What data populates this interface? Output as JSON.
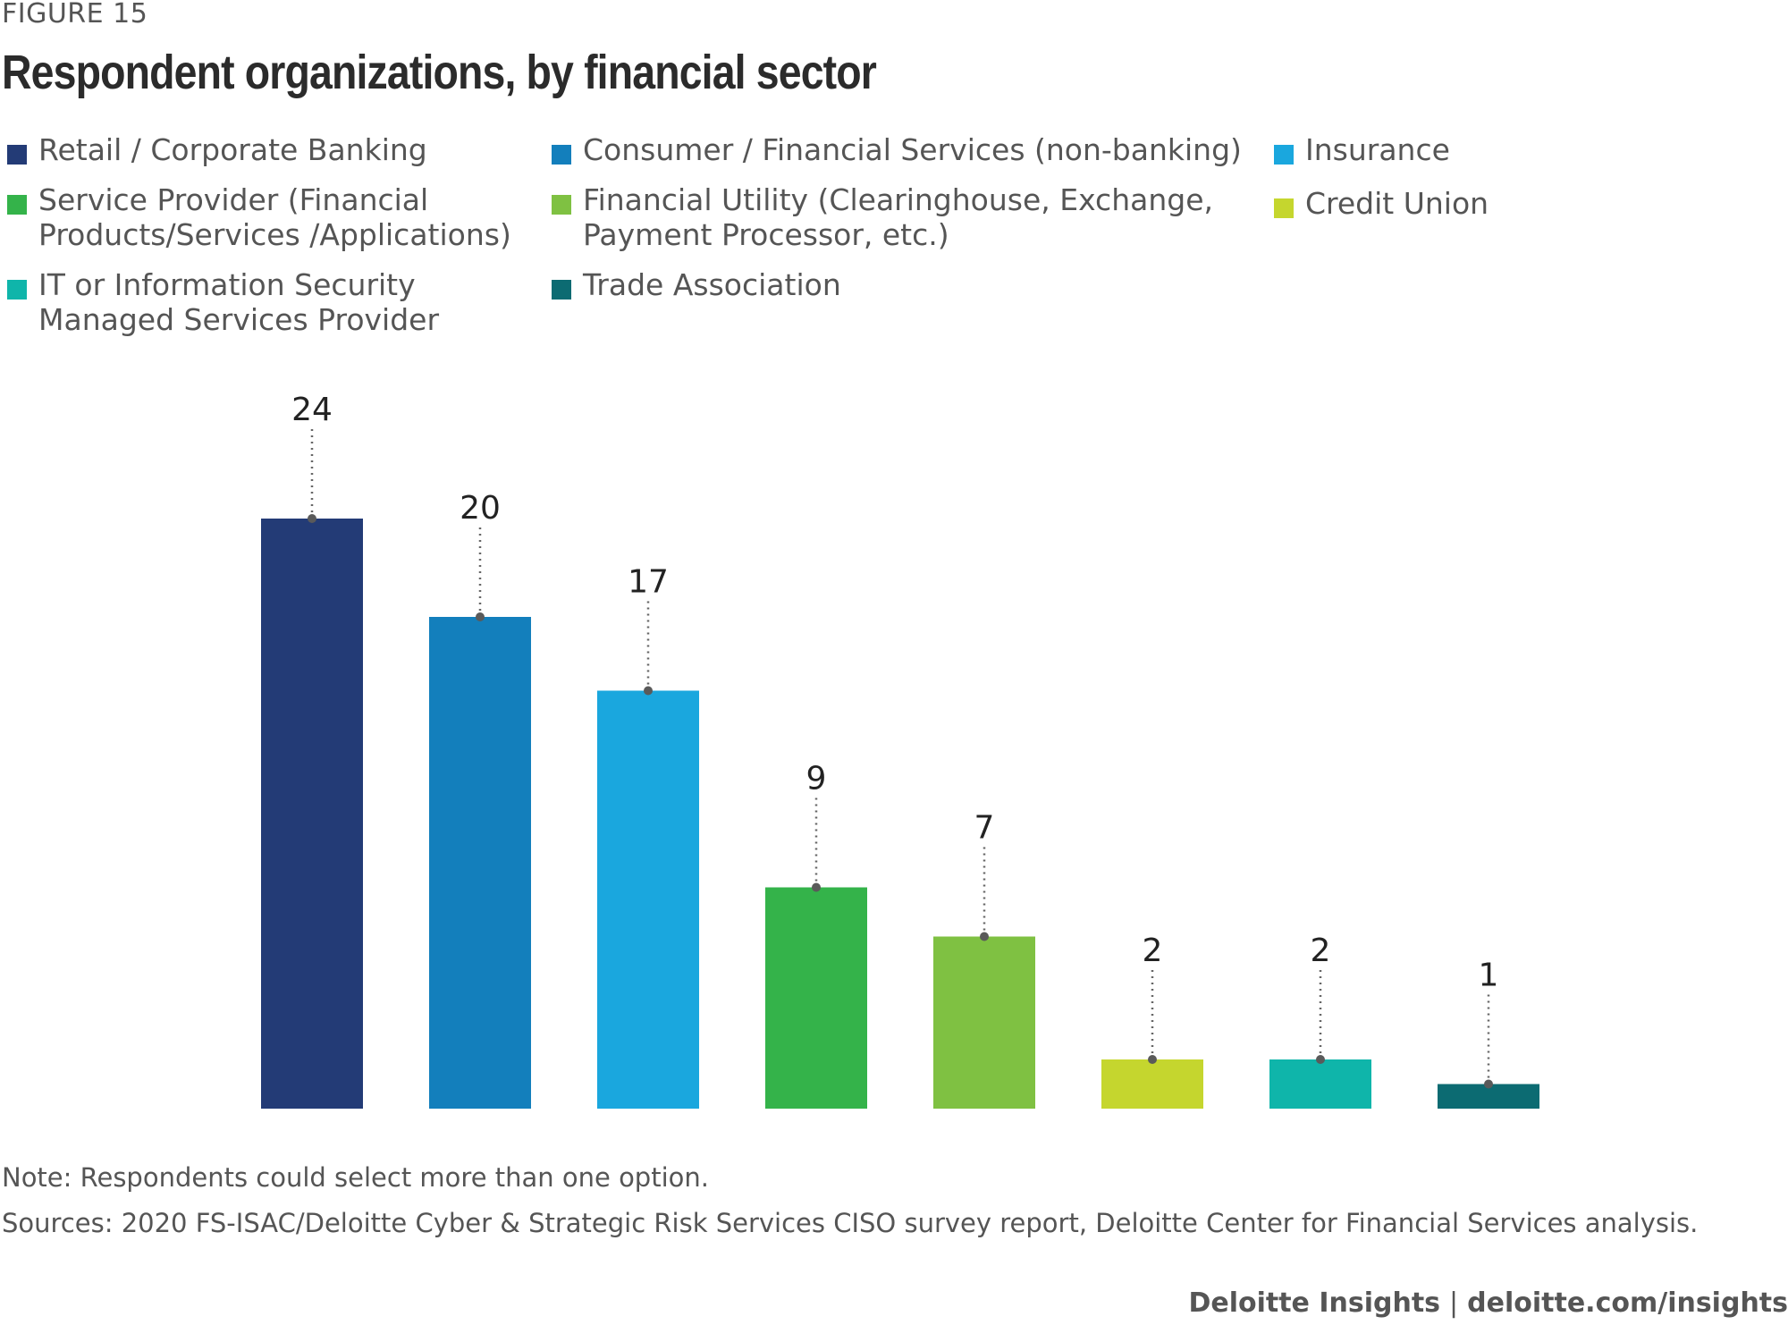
{
  "figure_label": "FIGURE 15",
  "footer": {
    "brand": "Deloitte Insights",
    "separator": "|",
    "url": "deloitte.com/insights"
  },
  "note": "Note: Respondents could select more than one option.",
  "sources": "Sources: 2020 FS-ISAC/Deloitte Cyber & Strategic Risk Services CISO survey report, Deloitte Center for Financial Services analysis.",
  "chart_data": {
    "type": "bar",
    "title": "Respondent organizations, by financial sector",
    "categories": [
      "Retail / Corporate Banking",
      "Consumer / Financial Services (non-banking)",
      "Insurance",
      "Service Provider (Financial Products/Services /Applications)",
      "Financial Utility (Clearinghouse, Exchange, Payment Processor, etc.)",
      "Credit Union",
      "IT or Information Security Managed Services Provider",
      "Trade Association"
    ],
    "values": [
      24,
      20,
      17,
      9,
      7,
      2,
      2,
      1
    ],
    "colors": [
      "#233b76",
      "#137fbc",
      "#1aa7de",
      "#34b34a",
      "#7fc142",
      "#c5d62e",
      "#0fb5aa",
      "#0c6b72"
    ],
    "xlabel": "",
    "ylabel": "",
    "ylim": [
      0,
      24
    ],
    "grid": false,
    "data_labels": true,
    "legend_position": "top"
  },
  "legend": [
    {
      "label": "Retail / Corporate Banking",
      "color": "#233b76"
    },
    {
      "label": "Consumer / Financial Services (non-banking)",
      "color": "#137fbc"
    },
    {
      "label": "Insurance",
      "color": "#1aa7de"
    },
    {
      "label": "Service Provider (Financial\nProducts/Services /Applications)",
      "color": "#34b34a"
    },
    {
      "label": "Financial Utility (Clearinghouse, Exchange,\nPayment Processor, etc.)",
      "color": "#7fc142"
    },
    {
      "label": "Credit Union",
      "color": "#c5d62e"
    },
    {
      "label": "IT or Information Security\nManaged Services Provider",
      "color": "#0fb5aa"
    },
    {
      "label": "Trade Association",
      "color": "#0c6b72"
    }
  ]
}
